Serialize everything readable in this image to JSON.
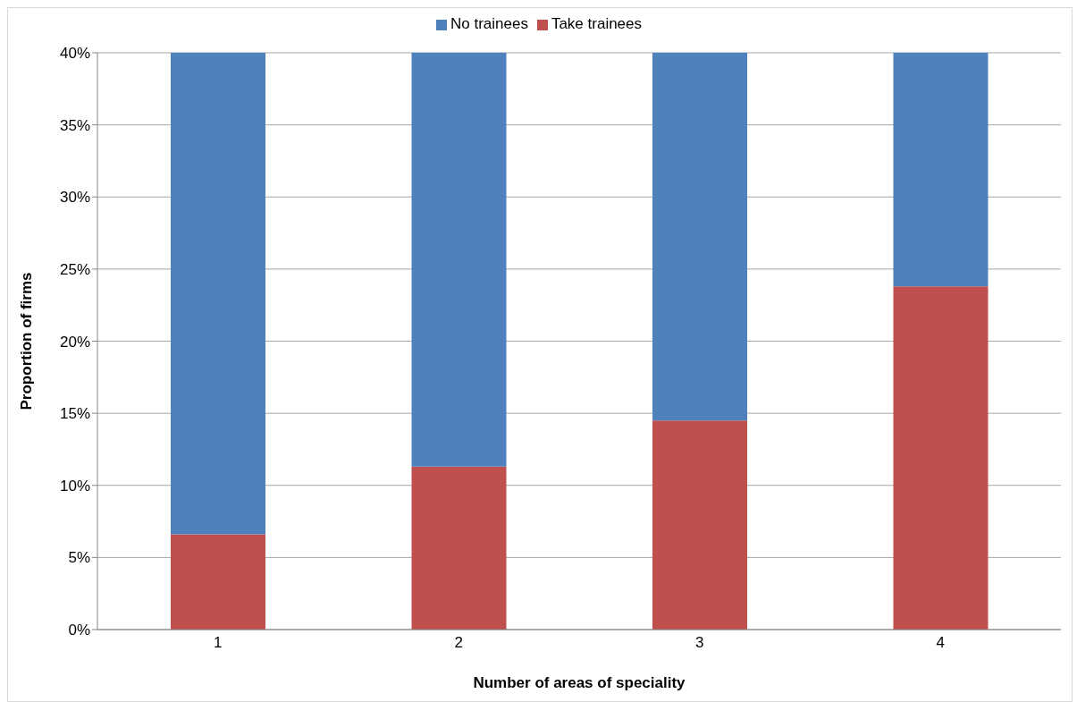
{
  "chart_data": {
    "type": "bar",
    "stacked": true,
    "xlabel": "Number of areas of speciality",
    "ylabel": "Proportion of firms",
    "categories": [
      "1",
      "2",
      "3",
      "4"
    ],
    "series": [
      {
        "name": "Take trainees",
        "color": "#c0504d",
        "values": [
          6.6,
          11.3,
          14.5,
          23.8
        ]
      },
      {
        "name": "No trainees",
        "color": "#4f81bd",
        "values": [
          33.4,
          28.7,
          25.5,
          16.2
        ]
      }
    ],
    "ylim": [
      0,
      40
    ],
    "yticks": [
      {
        "value": 0,
        "label": "0%"
      },
      {
        "value": 5,
        "label": "5%"
      },
      {
        "value": 10,
        "label": "10%"
      },
      {
        "value": 15,
        "label": "15%"
      },
      {
        "value": 20,
        "label": "20%"
      },
      {
        "value": 25,
        "label": "25%"
      },
      {
        "value": 30,
        "label": "30%"
      },
      {
        "value": 35,
        "label": "35%"
      },
      {
        "value": 40,
        "label": "40%"
      }
    ],
    "grid": "y",
    "legend": "top"
  }
}
